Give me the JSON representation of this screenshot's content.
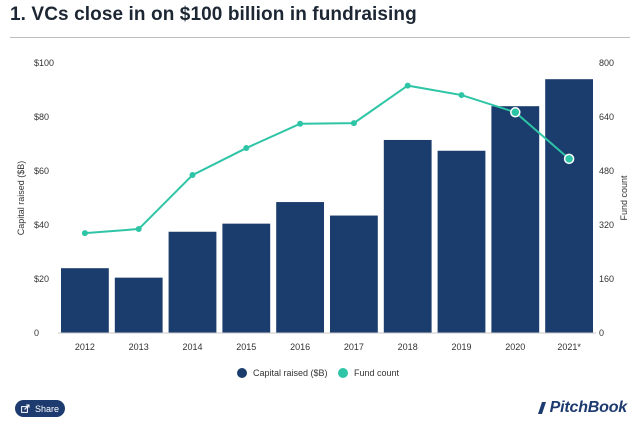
{
  "title": "1. VCs close in on $100 billion in fundraising",
  "share_label": "Share",
  "brand": "PitchBook",
  "colors": {
    "bar": "#1b3d6d",
    "line": "#2ec4a6",
    "axis_text": "#333333"
  },
  "chart_data": {
    "type": "bar",
    "categories": [
      "2012",
      "2013",
      "2014",
      "2015",
      "2016",
      "2017",
      "2018",
      "2019",
      "2020",
      "2021*"
    ],
    "series": [
      {
        "name": "Capital raised ($B)",
        "type": "bar",
        "axis": "left",
        "values": [
          24,
          20.5,
          37.5,
          40.5,
          48.5,
          43.5,
          71.5,
          67.5,
          84,
          94
        ]
      },
      {
        "name": "Fund count",
        "type": "line",
        "axis": "right",
        "values": [
          296,
          308,
          468,
          548,
          620,
          622,
          733,
          705,
          654,
          516
        ]
      }
    ],
    "ylabel": "Capital raised ($B)",
    "y2label": "Fund count",
    "ylim": [
      0,
      100
    ],
    "y2lim": [
      0,
      800
    ],
    "yticks": [
      "0",
      "$20",
      "$40",
      "$60",
      "$80",
      "$100"
    ],
    "y2ticks": [
      "0",
      "160",
      "320",
      "480",
      "640",
      "800"
    ],
    "grid": false,
    "legend": "bottom",
    "highlighted_points": [
      "2020",
      "2021*"
    ]
  }
}
